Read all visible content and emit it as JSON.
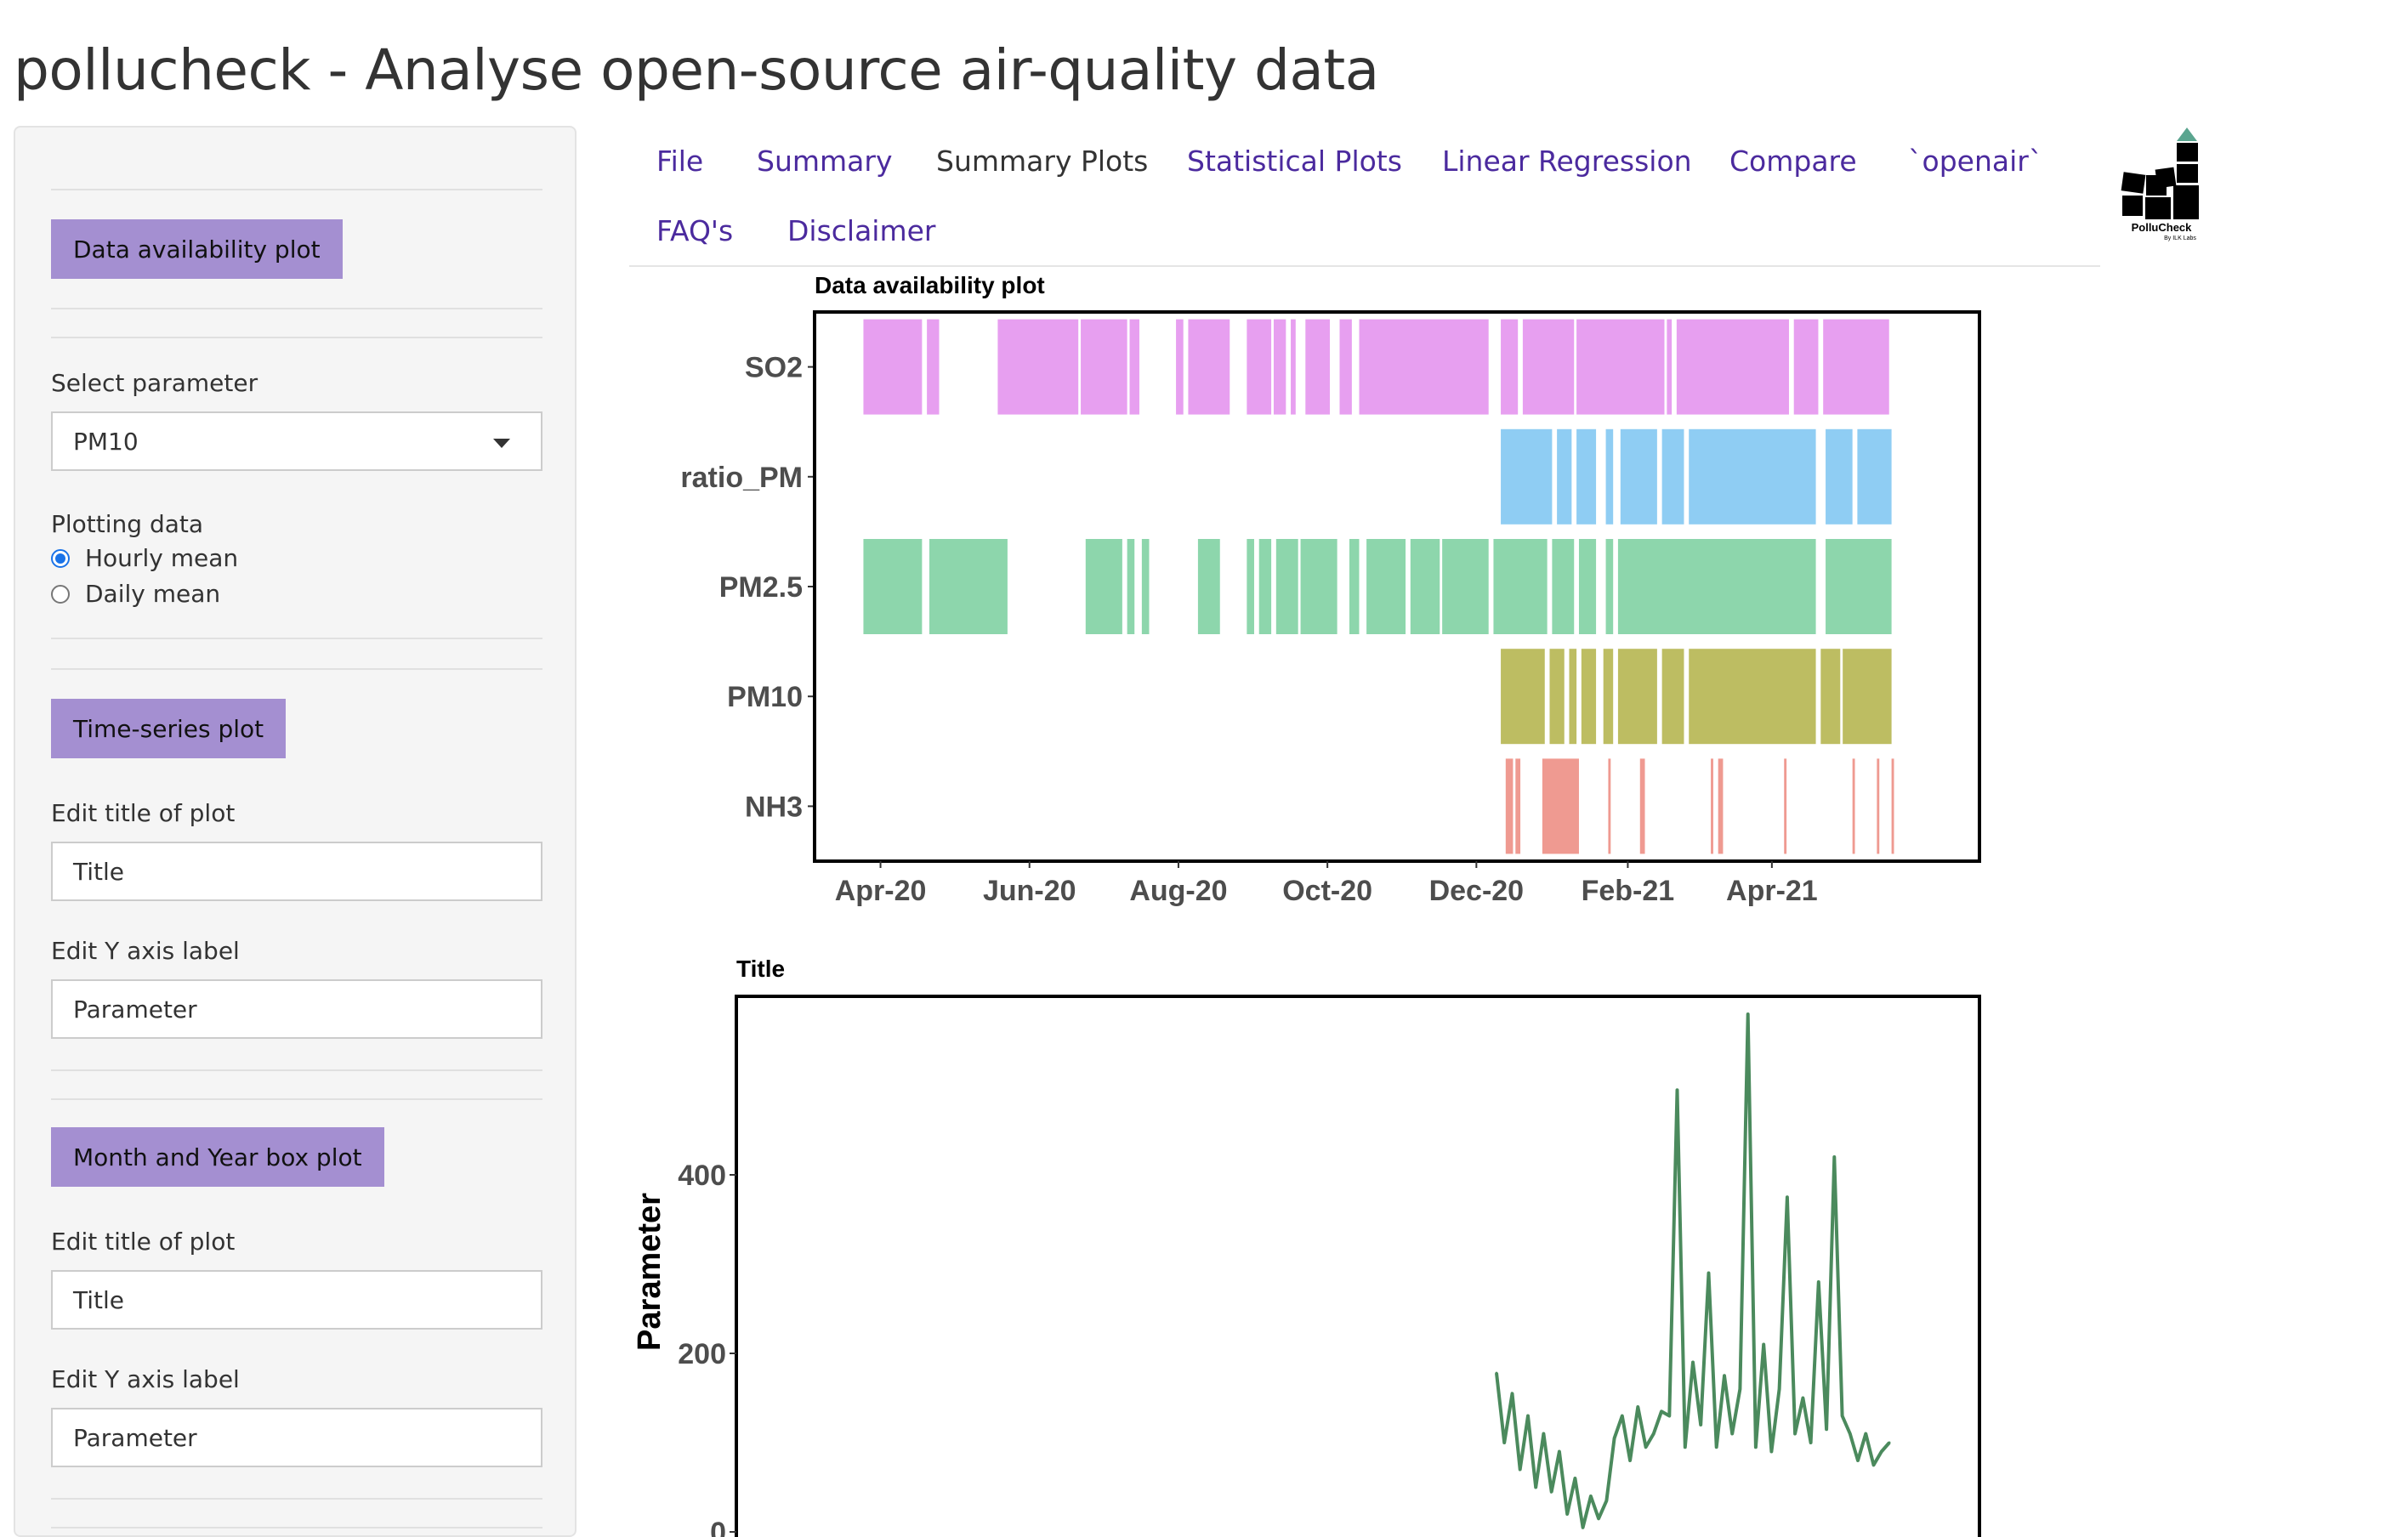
{
  "app_title": "pollucheck - Analyse open-source air-quality data",
  "sidebar": {
    "availability_button": "Data availability plot",
    "select_parameter_label": "Select parameter",
    "parameter_value": "PM10",
    "plotting_data_label": "Plotting data",
    "radio_options": [
      "Hourly mean",
      "Daily mean"
    ],
    "radio_selected": "Hourly mean",
    "timeseries_button": "Time-series plot",
    "ts_title_label": "Edit title of plot",
    "ts_title_value": "Title",
    "ts_ylabel_label": "Edit Y axis label",
    "ts_ylabel_value": "Parameter",
    "boxplot_button": "Month and Year box plot",
    "bp_title_label": "Edit title of plot",
    "bp_title_value": "Title",
    "bp_ylabel_label": "Edit Y axis label",
    "bp_ylabel_value": "Parameter"
  },
  "nav": {
    "tabs": [
      "File",
      "Summary",
      "Summary Plots",
      "Statistical Plots",
      "Linear Regression",
      "Compare",
      "`openair`",
      "FAQ's",
      "Disclaimer"
    ],
    "active": "Summary Plots"
  },
  "logo": {
    "name": "PolluCheck",
    "tagline": "By ILK Labs",
    "icon": "block-tower-logo-icon"
  },
  "availability_chart": {
    "chart_data": {
      "type": "bar",
      "title": "Data availability plot",
      "categories": [
        "SO2",
        "ratio_PM",
        "PM2.5",
        "PM10",
        "NH3"
      ],
      "x_ticks": [
        "Apr-20",
        "Jun-20",
        "Aug-20",
        "Oct-20",
        "Dec-20",
        "Feb-21",
        "Apr-21"
      ],
      "x_range": [
        "2020-03-05",
        "2021-06-25"
      ],
      "series": [
        {
          "name": "SO2",
          "color": "#e79ff0",
          "periods": [
            [
              "2020-03-25",
              "2020-04-18"
            ],
            [
              "2020-04-20",
              "2020-04-25"
            ],
            [
              "2020-05-19",
              "2020-06-21"
            ],
            [
              "2020-06-22",
              "2020-07-11"
            ],
            [
              "2020-07-12",
              "2020-07-16"
            ],
            [
              "2020-07-31",
              "2020-08-03"
            ],
            [
              "2020-08-05",
              "2020-08-22"
            ],
            [
              "2020-08-29",
              "2020-09-08"
            ],
            [
              "2020-09-09",
              "2020-09-14"
            ],
            [
              "2020-09-16",
              "2020-09-18"
            ],
            [
              "2020-09-22",
              "2020-10-02"
            ],
            [
              "2020-10-06",
              "2020-10-11"
            ],
            [
              "2020-10-14",
              "2020-12-06"
            ],
            [
              "2020-12-11",
              "2020-12-18"
            ],
            [
              "2020-12-20",
              "2021-01-10"
            ],
            [
              "2021-01-11",
              "2021-02-16"
            ],
            [
              "2021-02-17",
              "2021-02-19"
            ],
            [
              "2021-02-21",
              "2021-04-08"
            ],
            [
              "2021-04-10",
              "2021-04-20"
            ],
            [
              "2021-04-22",
              "2021-05-19"
            ]
          ]
        },
        {
          "name": "ratio_PM",
          "color": "#8fcdf3",
          "periods": [
            [
              "2020-12-11",
              "2021-01-01"
            ],
            [
              "2021-01-03",
              "2021-01-09"
            ],
            [
              "2021-01-11",
              "2021-01-19"
            ],
            [
              "2021-01-23",
              "2021-01-26"
            ],
            [
              "2021-01-29",
              "2021-02-13"
            ],
            [
              "2021-02-15",
              "2021-02-24"
            ],
            [
              "2021-02-26",
              "2021-04-19"
            ],
            [
              "2021-04-23",
              "2021-05-04"
            ],
            [
              "2021-05-06",
              "2021-05-20"
            ]
          ]
        },
        {
          "name": "PM2.5",
          "color": "#8dd6ac",
          "periods": [
            [
              "2020-03-25",
              "2020-04-18"
            ],
            [
              "2020-04-21",
              "2020-05-23"
            ],
            [
              "2020-06-24",
              "2020-07-09"
            ],
            [
              "2020-07-11",
              "2020-07-14"
            ],
            [
              "2020-07-17",
              "2020-07-20"
            ],
            [
              "2020-08-09",
              "2020-08-18"
            ],
            [
              "2020-08-29",
              "2020-09-01"
            ],
            [
              "2020-09-03",
              "2020-09-08"
            ],
            [
              "2020-09-10",
              "2020-09-19"
            ],
            [
              "2020-09-20",
              "2020-10-05"
            ],
            [
              "2020-10-10",
              "2020-10-14"
            ],
            [
              "2020-10-17",
              "2020-11-02"
            ],
            [
              "2020-11-04",
              "2020-11-16"
            ],
            [
              "2020-11-17",
              "2020-12-06"
            ],
            [
              "2020-12-08",
              "2020-12-30"
            ],
            [
              "2021-01-01",
              "2021-01-10"
            ],
            [
              "2021-01-12",
              "2021-01-19"
            ],
            [
              "2021-01-23",
              "2021-01-26"
            ],
            [
              "2021-01-28",
              "2021-04-19"
            ],
            [
              "2021-04-23",
              "2021-05-20"
            ]
          ]
        },
        {
          "name": "PM10",
          "color": "#bdbd62",
          "periods": [
            [
              "2020-12-11",
              "2020-12-29"
            ],
            [
              "2020-12-31",
              "2021-01-06"
            ],
            [
              "2021-01-08",
              "2021-01-11"
            ],
            [
              "2021-01-13",
              "2021-01-19"
            ],
            [
              "2021-01-22",
              "2021-01-26"
            ],
            [
              "2021-01-28",
              "2021-02-13"
            ],
            [
              "2021-02-15",
              "2021-02-24"
            ],
            [
              "2021-02-26",
              "2021-04-19"
            ],
            [
              "2021-04-21",
              "2021-04-29"
            ],
            [
              "2021-04-30",
              "2021-05-20"
            ]
          ]
        },
        {
          "name": "NH3",
          "color": "#ef9a91",
          "periods": [
            [
              "2020-12-13",
              "2020-12-16"
            ],
            [
              "2020-12-17",
              "2020-12-19"
            ],
            [
              "2020-12-28",
              "2021-01-12"
            ],
            [
              "2021-01-24",
              "2021-01-25"
            ],
            [
              "2021-02-06",
              "2021-02-08"
            ],
            [
              "2021-03-07",
              "2021-03-08"
            ],
            [
              "2021-03-10",
              "2021-03-12"
            ],
            [
              "2021-04-06",
              "2021-04-07"
            ],
            [
              "2021-05-04",
              "2021-05-05"
            ],
            [
              "2021-05-14",
              "2021-05-15"
            ],
            [
              "2021-05-20",
              "2021-05-21"
            ]
          ]
        }
      ],
      "grid": false,
      "legend": "none"
    }
  },
  "timeseries_chart": {
    "chart_data": {
      "type": "line",
      "title": "Title",
      "ylabel": "Parameter",
      "y_ticks": [
        0,
        200,
        400
      ],
      "ylim": [
        0,
        600
      ],
      "color": "#4b8a5d",
      "x": [
        0.0,
        0.02,
        0.04,
        0.06,
        0.08,
        0.1,
        0.12,
        0.14,
        0.16,
        0.18,
        0.2,
        0.22,
        0.24,
        0.26,
        0.28,
        0.3,
        0.32,
        0.34,
        0.36,
        0.38,
        0.4,
        0.42,
        0.44,
        0.46,
        0.48,
        0.5,
        0.52,
        0.54,
        0.56,
        0.58,
        0.6,
        0.62,
        0.64,
        0.66,
        0.68,
        0.7,
        0.72,
        0.74,
        0.76,
        0.78,
        0.8,
        0.82,
        0.84,
        0.86,
        0.88,
        0.9,
        0.92,
        0.94,
        0.96,
        0.98,
        1.0
      ],
      "values": [
        178,
        100,
        155,
        70,
        130,
        50,
        110,
        45,
        90,
        20,
        60,
        5,
        40,
        15,
        35,
        105,
        130,
        80,
        140,
        95,
        110,
        135,
        130,
        495,
        95,
        190,
        120,
        290,
        95,
        175,
        110,
        160,
        580,
        95,
        210,
        90,
        160,
        375,
        110,
        150,
        100,
        280,
        115,
        420,
        130,
        110,
        80,
        110,
        75,
        90,
        100
      ]
    }
  }
}
